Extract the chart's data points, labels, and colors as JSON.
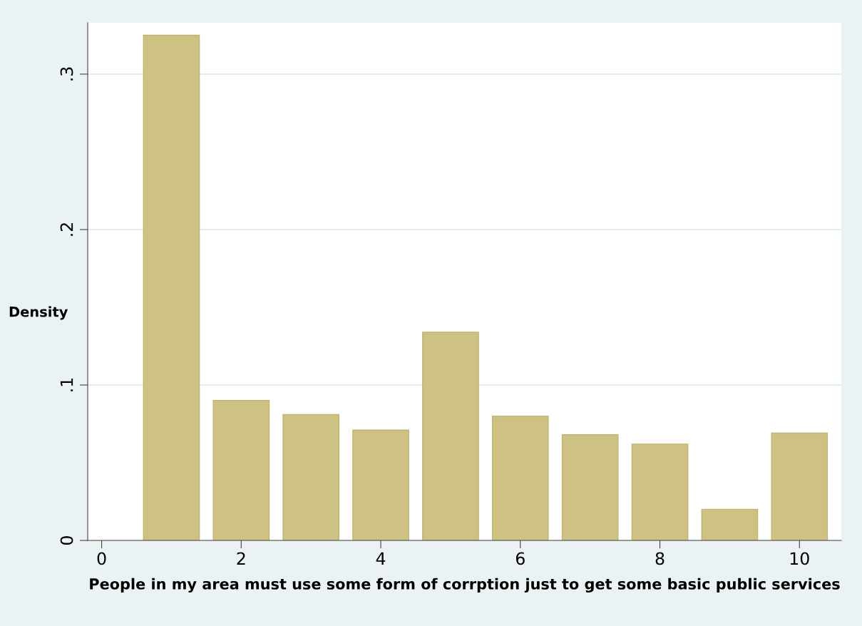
{
  "chart_data": {
    "type": "bar",
    "xlabel": "People in my area must use some form of corrption just to get some basic public services",
    "ylabel": "Density",
    "x": [
      1,
      2,
      3,
      4,
      5,
      6,
      7,
      8,
      9,
      10
    ],
    "values": [
      0.325,
      0.09,
      0.081,
      0.071,
      0.134,
      0.08,
      0.068,
      0.062,
      0.02,
      0.069
    ],
    "color": "#cdc281",
    "xlim": [
      -0.2,
      10.6
    ],
    "xticks": [
      0,
      2,
      4,
      6,
      8,
      10
    ],
    "ylim": [
      0,
      0.333
    ],
    "yticks": [
      {
        "value": 0,
        "label": "0"
      },
      {
        "value": 0.1,
        "label": ".1"
      },
      {
        "value": 0.2,
        "label": ".2"
      },
      {
        "value": 0.3,
        "label": ".3"
      }
    ],
    "grid": "y",
    "legend": false
  }
}
